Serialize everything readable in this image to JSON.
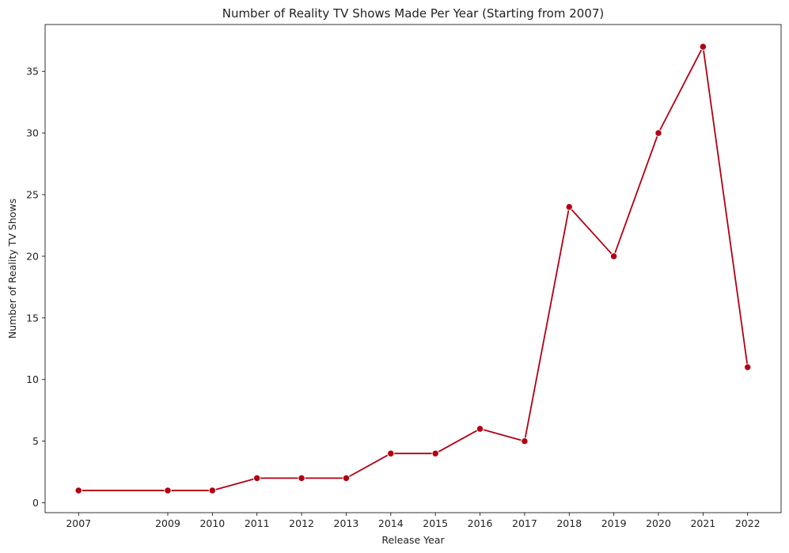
{
  "chart_data": {
    "type": "line",
    "title": "Number of Reality TV Shows Made Per Year (Starting from 2007)",
    "xlabel": "Release Year",
    "ylabel": "Number of Reality TV Shows",
    "x": [
      2007,
      2009,
      2010,
      2011,
      2012,
      2013,
      2014,
      2015,
      2016,
      2017,
      2018,
      2019,
      2020,
      2021,
      2022
    ],
    "x_tick_labels": [
      "2007",
      "2009",
      "2010",
      "2011",
      "2012",
      "2013",
      "2014",
      "2015",
      "2016",
      "2017",
      "2018",
      "2019",
      "2020",
      "2021",
      "2022"
    ],
    "y_ticks": [
      0,
      5,
      10,
      15,
      20,
      25,
      30,
      35
    ],
    "y_tick_labels": [
      "0",
      "5",
      "10",
      "15",
      "20",
      "25",
      "30",
      "35"
    ],
    "series": [
      {
        "values": [
          1,
          1,
          1,
          2,
          2,
          2,
          4,
          4,
          6,
          5,
          24,
          20,
          30,
          37,
          11
        ],
        "color": "#b10012",
        "marker": "circle"
      }
    ],
    "xlim": [
      2006.25,
      2022.75
    ],
    "ylim": [
      -0.8,
      38.8
    ],
    "grid": false,
    "legend": "none"
  }
}
